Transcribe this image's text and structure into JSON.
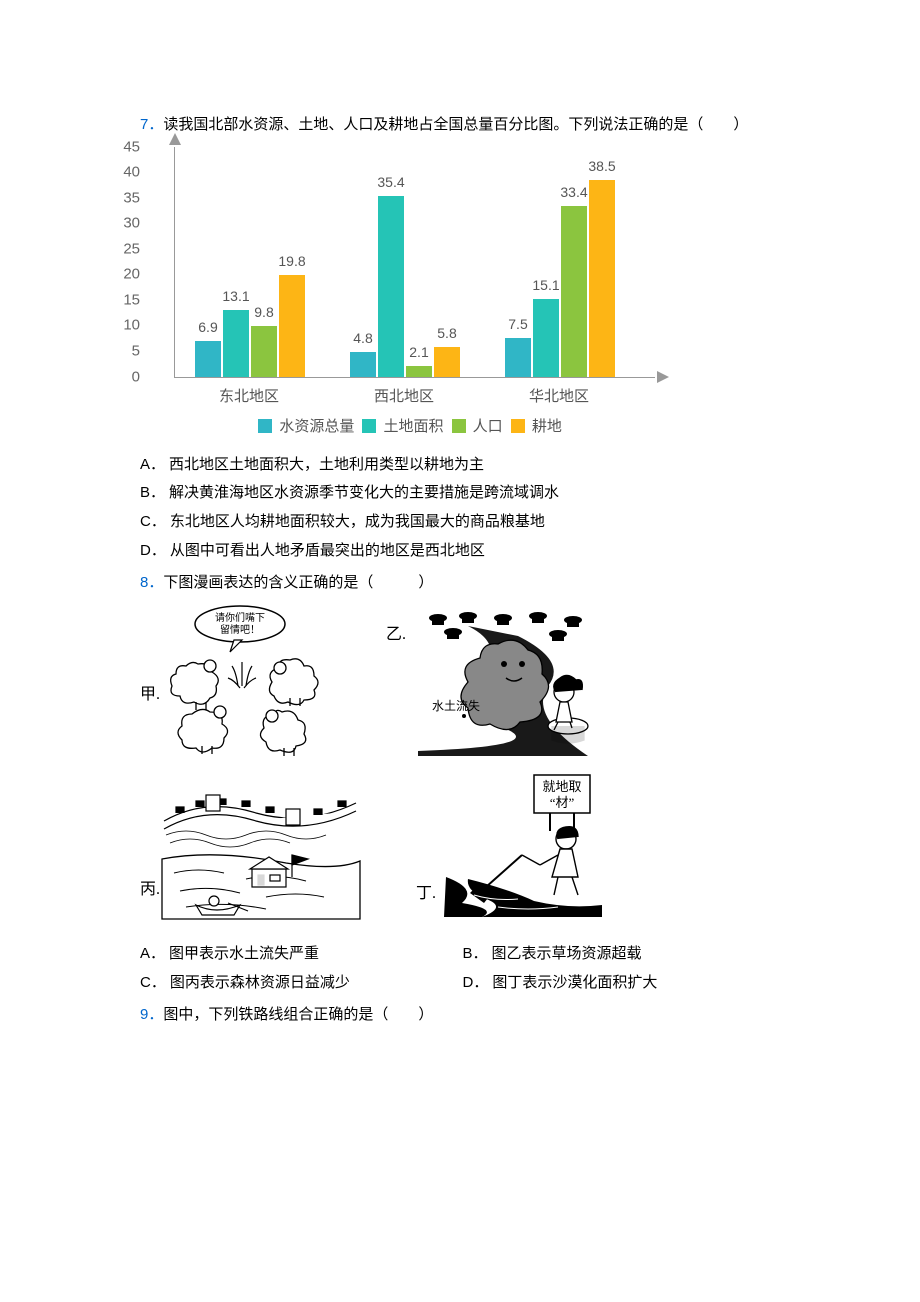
{
  "q7": {
    "number": "7．",
    "text": "读我国北部水资源、土地、人口及耕地占全国总量百分比图。下列说法正确的是（　　）",
    "chart": {
      "type": "bar",
      "yticks": [
        0,
        5,
        10,
        15,
        20,
        25,
        30,
        35,
        40,
        45
      ],
      "ymax": 45,
      "groups": [
        "东北地区",
        "西北地区",
        "华北地区"
      ],
      "series": [
        {
          "name": "水资源总量",
          "color": "#30b6c6"
        },
        {
          "name": "土地面积",
          "color": "#25c4b6"
        },
        {
          "name": "人口",
          "color": "#8bc53f"
        },
        {
          "name": "耕地",
          "color": "#fdb515"
        }
      ],
      "values": [
        [
          6.9,
          13.1,
          9.8,
          19.8
        ],
        [
          4.8,
          35.4,
          2.1,
          5.8
        ],
        [
          7.5,
          15.1,
          33.4,
          38.5
        ]
      ],
      "label_color": "#666666",
      "axis_color": "#999999"
    },
    "options": {
      "A": "西北地区土地面积大，土地利用类型以耕地为主",
      "B": "解决黄淮海地区水资源季节变化大的主要措施是跨流域调水",
      "C": "东北地区人均耕地面积较大，成为我国最大的商品粮基地",
      "D": "从图中可看出人地矛盾最突出的地区是西北地区"
    }
  },
  "q8": {
    "number": "8．",
    "text": "下图漫画表达的含义正确的是（　　　）",
    "comics": {
      "jia": "甲.",
      "yi": "乙.",
      "bing": "丙.",
      "ding": "丁.",
      "sheep_speech": "请你们嘴下",
      "sheep_speech2": "留情吧！",
      "yi_label": "水土流失",
      "ding_sign": "就地取",
      "ding_sign2": "“材”"
    },
    "options": {
      "A": "图甲表示水土流失严重",
      "B": "图乙表示草场资源超载",
      "C": "图丙表示森林资源日益减少",
      "D": "图丁表示沙漠化面积扩大"
    }
  },
  "q9": {
    "number": "9．",
    "text": "图中，下列铁路线组合正确的是（　　）"
  }
}
